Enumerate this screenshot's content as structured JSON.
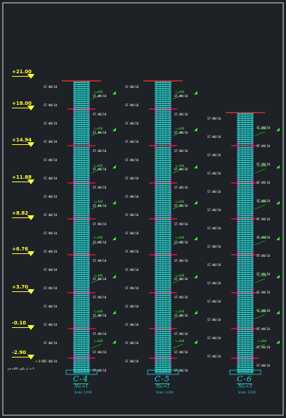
{
  "levels": [
    {
      "label": "+21.00"
    },
    {
      "label": "+18.00"
    },
    {
      "label": "+14.94"
    },
    {
      "label": "+11.88"
    },
    {
      "label": "+8.82"
    },
    {
      "label": "+6.76"
    },
    {
      "label": "+3.70"
    },
    {
      "label": "-0.10"
    },
    {
      "label": "-2.90"
    }
  ],
  "ground_note": "+ 0.00",
  "base_note": "لا بد ان يكون الكانة في",
  "columns": [
    {
      "name": "C-4",
      "no": "No.=1",
      "scale": "Scale: 1/100"
    },
    {
      "name": "C-5",
      "no": "No.=1",
      "scale": "Scale: 1/100"
    },
    {
      "name": "C-6",
      "no": "No.=3",
      "scale": "Scale: 1/100"
    }
  ],
  "stirrup_label": "ST.Ф8/10",
  "bar_label": "L=440",
  "colors": {
    "background": "#1e2126",
    "column": "#26d6d6",
    "level": "#ffff33",
    "text": "#33ff33",
    "slab": "#ff3333",
    "bar": "#ff33ff"
  }
}
